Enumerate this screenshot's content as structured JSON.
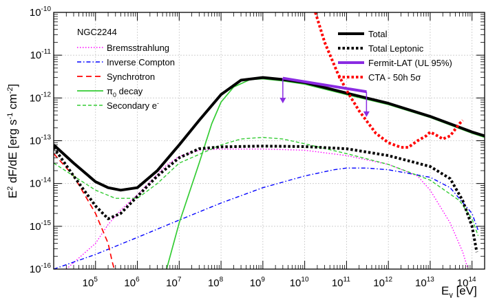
{
  "chart_data": {
    "type": "line",
    "title": "",
    "x_scale": "log",
    "y_scale": "log",
    "xlim": [
      10000,
      200000000000000
    ],
    "ylim": [
      1e-16,
      1e-10
    ],
    "grid": true,
    "xlabel": {
      "main": "E",
      "sub": "γ",
      "unit": " [eV]"
    },
    "ylabel": {
      "pre": "E",
      "sup1": "2",
      "mid": " dF/dE [erg s",
      "sup2": "-1",
      "mid2": " cm",
      "sup3": "-2",
      "post": "]"
    },
    "x_ticks": [
      {
        "value": 100000,
        "base": "10",
        "exp": "5"
      },
      {
        "value": 1000000,
        "base": "10",
        "exp": "6"
      },
      {
        "value": 10000000,
        "base": "10",
        "exp": "7"
      },
      {
        "value": 100000000,
        "base": "10",
        "exp": "8"
      },
      {
        "value": 1000000000,
        "base": "10",
        "exp": "9"
      },
      {
        "value": 10000000000,
        "base": "10",
        "exp": "10"
      },
      {
        "value": 100000000000,
        "base": "10",
        "exp": "11"
      },
      {
        "value": 1000000000000,
        "base": "10",
        "exp": "12"
      },
      {
        "value": 10000000000000,
        "base": "10",
        "exp": "13"
      },
      {
        "value": 100000000000000,
        "base": "10",
        "exp": "14"
      }
    ],
    "y_ticks": [
      {
        "value": 1e-16,
        "base": "10",
        "exp": "-16"
      },
      {
        "value": 1e-15,
        "base": "10",
        "exp": "-15"
      },
      {
        "value": 1e-14,
        "base": "10",
        "exp": "-14"
      },
      {
        "value": 1e-13,
        "base": "10",
        "exp": "-13"
      },
      {
        "value": 1e-12,
        "base": "10",
        "exp": "-12"
      },
      {
        "value": 1e-11,
        "base": "10",
        "exp": "-11"
      },
      {
        "value": 1e-10,
        "base": "10",
        "exp": "-10"
      }
    ],
    "legend_left": {
      "title": "NGC2244",
      "placement": "top-left",
      "entries": [
        "Bremsstrahlung",
        "Inverse Compton",
        "Synchrotron",
        "π0 decay",
        "Secondary e-"
      ]
    },
    "legend_right": {
      "placement": "top-right",
      "entries": [
        "Total",
        "Total Leptonic",
        "Fermit-LAT (UL 95%)",
        "CTA - 50h 5σ"
      ]
    },
    "pi0_label": {
      "main": "π",
      "sub": "0",
      "rest": " decay"
    },
    "sec_label": {
      "main": "Secondary e",
      "sup": "-"
    },
    "series": [
      {
        "name": "Bremsstrahlung",
        "color": "#ff00ff",
        "style": "dotted",
        "width": 1.4,
        "points": [
          [
            20000,
            1e-16
          ],
          [
            100000,
            4e-16
          ],
          [
            200000,
            1.1e-15
          ],
          [
            400000,
            2.4e-15
          ],
          [
            1000000,
            5.5e-15
          ],
          [
            2000000,
            1.1e-14
          ],
          [
            5000000,
            2.7e-14
          ],
          [
            10000000,
            4.3e-14
          ],
          [
            30000000,
            6e-14
          ],
          [
            100000000,
            6.4e-14
          ],
          [
            1000000000,
            6.4e-14
          ],
          [
            10000000000,
            6e-14
          ],
          [
            100000000000,
            4.5e-14
          ],
          [
            1000000000000,
            2.8e-14
          ],
          [
            5000000000000,
            1.5e-14
          ],
          [
            10000000000000,
            7e-15
          ],
          [
            30000000000000,
            1.2e-15
          ],
          [
            60000000000000,
            2.5e-16
          ],
          [
            80000000000000,
            1e-16
          ]
        ]
      },
      {
        "name": "Inverse Compton",
        "color": "#0000ff",
        "style": "dashdot",
        "width": 1.4,
        "points": [
          [
            10000,
            1e-16
          ],
          [
            100000,
            2.2e-16
          ],
          [
            1000000,
            5.5e-16
          ],
          [
            10000000,
            1.4e-15
          ],
          [
            100000000,
            3.5e-15
          ],
          [
            1000000000,
            8e-15
          ],
          [
            10000000000,
            1.5e-14
          ],
          [
            50000000000,
            2.1e-14
          ],
          [
            100000000000,
            2.3e-14
          ],
          [
            300000000000,
            2.3e-14
          ],
          [
            1000000000000,
            2.1e-14
          ],
          [
            10000000000000,
            1.4e-14
          ],
          [
            30000000000000,
            8e-15
          ],
          [
            100000000000000,
            2e-15
          ],
          [
            140000000000000,
            8e-16
          ]
        ]
      },
      {
        "name": "Synchrotron",
        "color": "#ff0000",
        "style": "dashed",
        "width": 1.7,
        "points": [
          [
            10000,
            5e-14
          ],
          [
            30000,
            1.5e-14
          ],
          [
            100000,
            2e-15
          ],
          [
            200000,
            4e-16
          ],
          [
            250000,
            1.5e-16
          ],
          [
            280000,
            1e-16
          ]
        ]
      },
      {
        "name": "π0 decay",
        "color": "#33cc33",
        "style": "solid",
        "width": 1.7,
        "points": [
          [
            5000000,
            1e-16
          ],
          [
            10000000,
            1.2e-15
          ],
          [
            30000000,
            3e-14
          ],
          [
            60000000,
            2.5e-13
          ],
          [
            100000000,
            8e-13
          ],
          [
            200000000,
            1.8e-12
          ],
          [
            500000000,
            2.7e-12
          ],
          [
            1000000000,
            2.8e-12
          ],
          [
            3000000000,
            2.5e-12
          ],
          [
            10000000000,
            2.1e-12
          ],
          [
            100000000000,
            1.2e-12
          ],
          [
            1000000000000,
            7e-13
          ],
          [
            10000000000000,
            3.5e-13
          ],
          [
            100000000000000,
            1.5e-13
          ],
          [
            200000000000000,
            1.2e-13
          ]
        ]
      },
      {
        "name": "Secondary e-",
        "color": "#33cc33",
        "style": "dashed",
        "width": 1.4,
        "points": [
          [
            10000,
            3e-14
          ],
          [
            30000,
            1.5e-14
          ],
          [
            100000,
            7e-15
          ],
          [
            300000,
            4.5e-15
          ],
          [
            1000000,
            4.5e-15
          ],
          [
            3000000,
            1e-14
          ],
          [
            10000000,
            3e-14
          ],
          [
            100000000,
            8e-14
          ],
          [
            300000000,
            1.1e-13
          ],
          [
            1000000000,
            1.2e-13
          ],
          [
            3000000000,
            1.1e-13
          ],
          [
            10000000000,
            8.5e-14
          ],
          [
            100000000000,
            5e-14
          ],
          [
            1000000000000,
            2.8e-14
          ],
          [
            10000000000000,
            1.2e-14
          ],
          [
            50000000000000,
            4e-15
          ],
          [
            100000000000000,
            1.5e-15
          ],
          [
            140000000000000,
            6e-16
          ]
        ]
      },
      {
        "name": "Total",
        "color": "#000000",
        "style": "solid",
        "width": 4,
        "points": [
          [
            10000,
            8e-14
          ],
          [
            30000,
            3e-14
          ],
          [
            100000,
            1.1e-14
          ],
          [
            200000,
            8e-15
          ],
          [
            400000,
            7e-15
          ],
          [
            1000000,
            8e-15
          ],
          [
            3000000,
            2e-14
          ],
          [
            10000000,
            8e-14
          ],
          [
            30000000,
            3e-13
          ],
          [
            100000000,
            1.2e-12
          ],
          [
            300000000,
            2.6e-12
          ],
          [
            1000000000,
            3e-12
          ],
          [
            3000000000,
            2.7e-12
          ],
          [
            10000000000,
            2.3e-12
          ],
          [
            100000000000,
            1.3e-12
          ],
          [
            1000000000000,
            7.5e-13
          ],
          [
            10000000000000,
            3.7e-13
          ],
          [
            100000000000000,
            1.6e-13
          ],
          [
            200000000000000,
            1.3e-13
          ]
        ]
      },
      {
        "name": "Total Leptonic",
        "color": "#000000",
        "style": "dotted",
        "width": 4,
        "points": [
          [
            10000,
            7e-14
          ],
          [
            30000,
            1.5e-14
          ],
          [
            100000,
            3e-15
          ],
          [
            200000,
            1.5e-15
          ],
          [
            400000,
            2e-15
          ],
          [
            1000000,
            5e-15
          ],
          [
            3000000,
            1.5e-14
          ],
          [
            10000000,
            4e-14
          ],
          [
            30000000,
            6.5e-14
          ],
          [
            100000000,
            7.2e-14
          ],
          [
            1000000000,
            7.5e-14
          ],
          [
            10000000000,
            7.3e-14
          ],
          [
            100000000000,
            6.5e-14
          ],
          [
            1000000000000,
            4.5e-14
          ],
          [
            10000000000000,
            2.5e-14
          ],
          [
            30000000000000,
            1.3e-14
          ],
          [
            60000000000000,
            4e-15
          ],
          [
            100000000000000,
            1e-15
          ],
          [
            130000000000000,
            2.5e-16
          ]
        ]
      },
      {
        "name": "CTA - 50h 5σ",
        "color": "#ff0000",
        "style": "dotted",
        "width": 4,
        "points": [
          [
            18000000000,
            1e-10
          ],
          [
            30000000000,
            2e-11
          ],
          [
            60000000000,
            4e-12
          ],
          [
            100000000000,
            1.5e-12
          ],
          [
            200000000000,
            5e-13
          ],
          [
            500000000000,
            1.5e-13
          ],
          [
            1000000000000,
            9e-14
          ],
          [
            2000000000000,
            7e-14
          ],
          [
            3000000000000,
            7e-14
          ],
          [
            5000000000000,
            1e-13
          ],
          [
            8000000000000,
            1.3e-13
          ],
          [
            10000000000000,
            1.6e-13
          ],
          [
            15000000000000,
            1.3e-13
          ],
          [
            20000000000000,
            1.1e-13
          ],
          [
            30000000000000,
            1.3e-13
          ],
          [
            50000000000000,
            2.5e-13
          ],
          [
            60000000000000,
            3e-13
          ]
        ]
      }
    ],
    "fermi_ul": {
      "name": "Fermit-LAT (UL 95%)",
      "color": "#8a2be2",
      "line": [
        [
          3000000000,
          2.9e-12
        ],
        [
          300000000000,
          1.4e-12
        ]
      ],
      "arrows": [
        {
          "x": 3000000000,
          "y_top": 2.9e-12,
          "y_bottom": 7.5e-13
        },
        {
          "x": 300000000000,
          "y_top": 1.4e-12,
          "y_bottom": 3.6e-13
        }
      ]
    }
  }
}
